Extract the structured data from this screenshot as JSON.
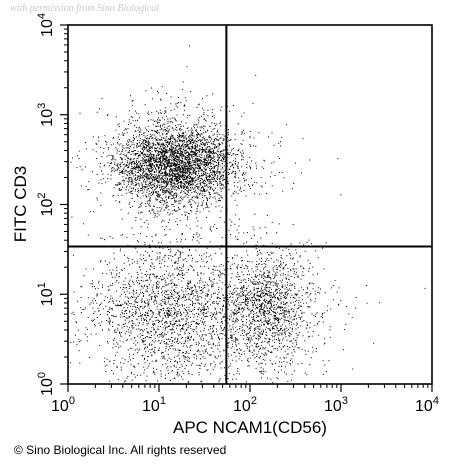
{
  "watermark": "with permission from Sino Biological",
  "copyright": "© Sino Biological Inc. All rights reserved",
  "chart_data": {
    "type": "scatter",
    "title": "",
    "xlabel": "APC NCAM1(CD56)",
    "ylabel": "FITC CD3",
    "xscale": "log",
    "yscale": "log",
    "xlim": [
      1,
      10000
    ],
    "ylim": [
      1,
      10000
    ],
    "x_ticks": [
      {
        "value": 1,
        "base": "10",
        "exp": "0"
      },
      {
        "value": 10,
        "base": "10",
        "exp": "1"
      },
      {
        "value": 100,
        "base": "10",
        "exp": "2"
      },
      {
        "value": 1000,
        "base": "10",
        "exp": "3"
      },
      {
        "value": 10000,
        "base": "10",
        "exp": "4"
      }
    ],
    "y_ticks": [
      {
        "value": 1,
        "base": "10",
        "exp": "0"
      },
      {
        "value": 10,
        "base": "10",
        "exp": "1"
      },
      {
        "value": 100,
        "base": "10",
        "exp": "2"
      },
      {
        "value": 1000,
        "base": "10",
        "exp": "3"
      },
      {
        "value": 10000,
        "base": "10",
        "exp": "4"
      }
    ],
    "gates": {
      "x": 55,
      "y": 34
    },
    "grid": false,
    "point_color": "#000000",
    "populations": [
      {
        "center_x": 15,
        "center_y": 280,
        "events": 3800
      },
      {
        "center_x": 12,
        "center_y": 6,
        "events": 2100
      },
      {
        "center_x": 150,
        "center_y": 7,
        "events": 1500
      }
    ]
  }
}
